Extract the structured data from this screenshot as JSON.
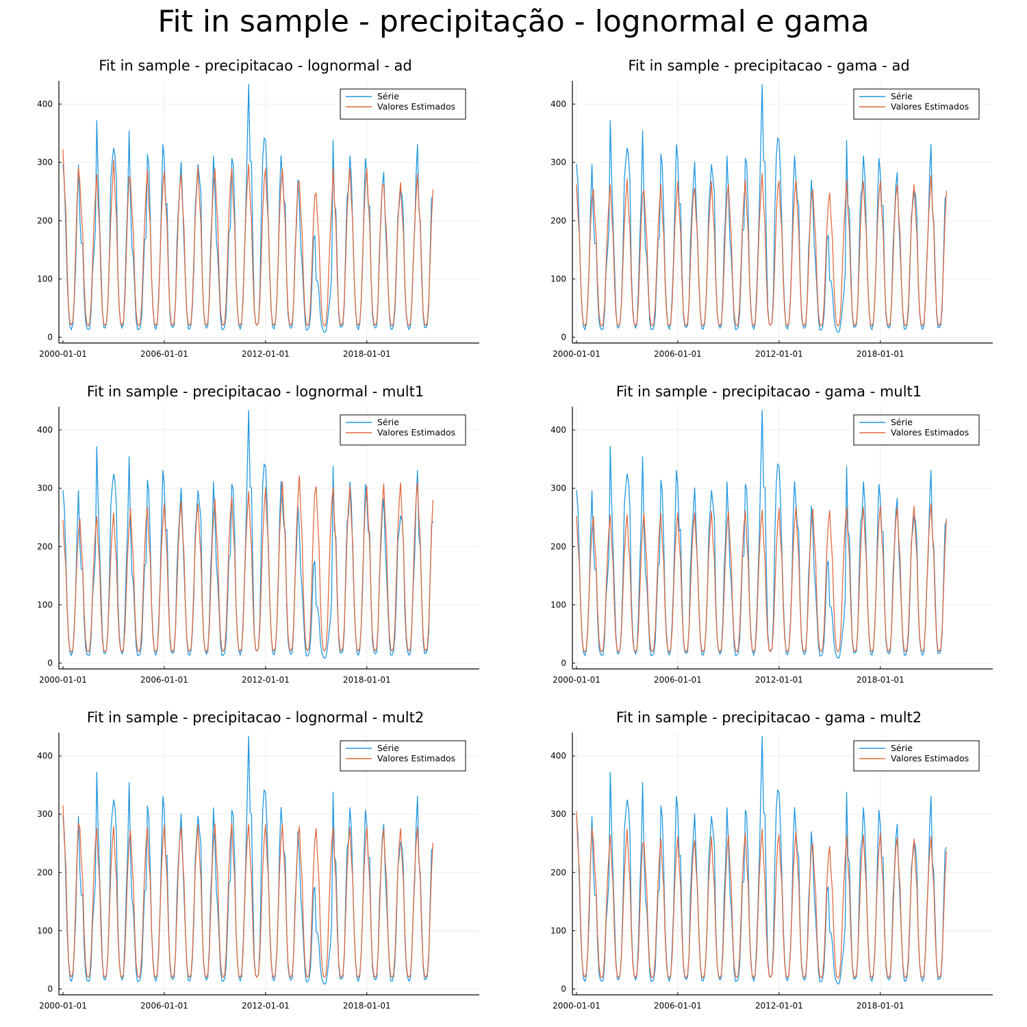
{
  "title": "Fit in sample - precipitação - lognormal e gama",
  "colors": {
    "serie": "#1f97e0",
    "estimados": "#e06a3f",
    "grid": "#ececec",
    "axis": "#000000",
    "legend_border": "#000000"
  },
  "chart_data": [
    {
      "type": "line",
      "title": "Fit in sample - precipitacao - lognormal - ad",
      "x_ticks": [
        "2000-01-01",
        "2006-01-01",
        "2012-01-01",
        "2018-01-01"
      ],
      "x_range": [
        "2000-01-01",
        "2023-12-01"
      ],
      "frequency": "monthly",
      "y_ticks": [
        0,
        100,
        200,
        300,
        400
      ],
      "ylim": [
        -10,
        440
      ],
      "grid": true,
      "legend": "top-right",
      "series": [
        {
          "name": "Série",
          "color": "#1f97e0",
          "peaks": [
            297,
            216,
            336,
            369,
            212,
            328,
            315,
            278,
            336,
            225,
            333,
            427,
            322,
            304,
            205,
            109,
            320,
            309,
            303,
            255,
            287,
            304
          ]
        },
        {
          "name": "Valores Estimados",
          "color": "#e06a3f",
          "peaks": [
            322,
            266,
            280,
            305,
            270,
            287,
            285,
            280,
            292,
            290,
            290,
            297,
            290,
            290,
            268,
            248,
            290,
            290,
            290,
            262,
            266,
            280
          ]
        }
      ]
    },
    {
      "type": "line",
      "title": "Fit in sample - precipitacao - gama - ad",
      "x_ticks": [
        "2000-01-01",
        "2006-01-01",
        "2012-01-01",
        "2018-01-01"
      ],
      "x_range": [
        "2000-01-01",
        "2023-12-01"
      ],
      "frequency": "monthly",
      "y_ticks": [
        0,
        100,
        200,
        300,
        400
      ],
      "ylim": [
        -10,
        440
      ],
      "grid": true,
      "legend": "top-right",
      "series": [
        {
          "name": "Série",
          "color": "#1f97e0",
          "peaks": [
            297,
            216,
            336,
            369,
            212,
            328,
            315,
            278,
            336,
            225,
            333,
            427,
            322,
            304,
            205,
            109,
            320,
            309,
            303,
            255,
            287,
            304
          ]
        },
        {
          "name": "Valores Estimados",
          "color": "#e06a3f",
          "peaks": [
            262,
            254,
            262,
            272,
            252,
            262,
            268,
            256,
            268,
            262,
            270,
            282,
            268,
            270,
            253,
            248,
            270,
            268,
            268,
            262,
            262,
            278
          ]
        }
      ]
    },
    {
      "type": "line",
      "title": "Fit in sample - precipitacao - lognormal - mult1",
      "x_ticks": [
        "2000-01-01",
        "2006-01-01",
        "2012-01-01",
        "2018-01-01"
      ],
      "x_range": [
        "2000-01-01",
        "2023-12-01"
      ],
      "frequency": "monthly",
      "y_ticks": [
        0,
        100,
        200,
        300,
        400
      ],
      "ylim": [
        -10,
        440
      ],
      "grid": true,
      "legend": "top-right",
      "series": [
        {
          "name": "Série",
          "color": "#1f97e0",
          "peaks": [
            297,
            216,
            336,
            369,
            212,
            328,
            315,
            278,
            336,
            225,
            333,
            427,
            322,
            304,
            205,
            109,
            320,
            309,
            303,
            255,
            287,
            304
          ]
        },
        {
          "name": "Valores Estimados",
          "color": "#e06a3f",
          "peaks": [
            246,
            248,
            252,
            258,
            266,
            268,
            274,
            278,
            274,
            282,
            285,
            295,
            302,
            312,
            322,
            303,
            302,
            304,
            304,
            308,
            310,
            310
          ]
        }
      ]
    },
    {
      "type": "line",
      "title": "Fit in sample - precipitacao - gama - mult1",
      "x_ticks": [
        "2000-01-01",
        "2006-01-01",
        "2012-01-01",
        "2018-01-01"
      ],
      "x_range": [
        "2000-01-01",
        "2023-12-01"
      ],
      "frequency": "monthly",
      "y_ticks": [
        0,
        100,
        200,
        300,
        400
      ],
      "ylim": [
        -10,
        440
      ],
      "grid": true,
      "legend": "top-right",
      "series": [
        {
          "name": "Série",
          "color": "#1f97e0",
          "peaks": [
            297,
            216,
            336,
            369,
            212,
            328,
            315,
            278,
            336,
            225,
            333,
            427,
            322,
            304,
            205,
            109,
            320,
            309,
            303,
            255,
            287,
            304
          ]
        },
        {
          "name": "Valores Estimados",
          "color": "#e06a3f",
          "peaks": [
            252,
            252,
            254,
            255,
            257,
            257,
            258,
            258,
            261,
            261,
            262,
            263,
            266,
            268,
            265,
            262,
            268,
            268,
            270,
            268,
            270,
            274
          ]
        }
      ]
    },
    {
      "type": "line",
      "title": "Fit in sample - precipitacao - lognormal - mult2",
      "x_ticks": [
        "2000-01-01",
        "2006-01-01",
        "2012-01-01",
        "2018-01-01"
      ],
      "x_range": [
        "2000-01-01",
        "2023-12-01"
      ],
      "frequency": "monthly",
      "y_ticks": [
        0,
        100,
        200,
        300,
        400
      ],
      "ylim": [
        -10,
        440
      ],
      "grid": true,
      "legend": "top-right",
      "series": [
        {
          "name": "Série",
          "color": "#1f97e0",
          "peaks": [
            297,
            216,
            336,
            369,
            212,
            328,
            315,
            278,
            336,
            225,
            333,
            427,
            322,
            304,
            205,
            109,
            320,
            309,
            303,
            255,
            287,
            304
          ]
        },
        {
          "name": "Valores Estimados",
          "color": "#e06a3f",
          "peaks": [
            315,
            276,
            276,
            280,
            273,
            278,
            282,
            278,
            282,
            284,
            285,
            283,
            283,
            283,
            280,
            276,
            278,
            278,
            278,
            275,
            276,
            278
          ]
        }
      ]
    },
    {
      "type": "line",
      "title": "Fit in sample - precipitacao - gama - mult2",
      "x_ticks": [
        "2000-01-01",
        "2006-01-01",
        "2012-01-01",
        "2018-01-01"
      ],
      "x_range": [
        "2000-01-01",
        "2023-12-01"
      ],
      "frequency": "monthly",
      "y_ticks": [
        0,
        100,
        200,
        300,
        400
      ],
      "ylim": [
        -10,
        440
      ],
      "grid": true,
      "legend": "top-right",
      "series": [
        {
          "name": "Série",
          "color": "#1f97e0",
          "peaks": [
            297,
            216,
            336,
            369,
            212,
            328,
            315,
            278,
            336,
            225,
            333,
            427,
            322,
            304,
            205,
            109,
            320,
            309,
            303,
            255,
            287,
            304
          ]
        },
        {
          "name": "Valores Estimados",
          "color": "#e06a3f",
          "peaks": [
            305,
            254,
            265,
            275,
            252,
            258,
            262,
            255,
            262,
            265,
            268,
            275,
            265,
            270,
            248,
            245,
            265,
            265,
            268,
            260,
            258,
            262
          ]
        }
      ]
    }
  ]
}
